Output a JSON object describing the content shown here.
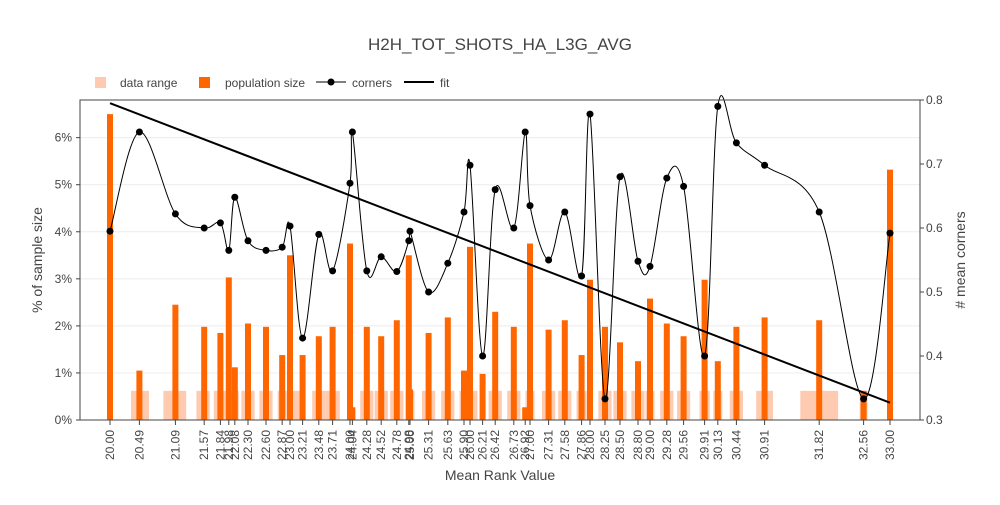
{
  "chart_data": {
    "type": "bar",
    "title": "H2H_TOT_SHOTS_HA_L3G_AVG",
    "xlabel": "Mean Rank Value",
    "ylabel": "% of sample size",
    "y2label": "# mean corners",
    "xlim": [
      19.5,
      33.5
    ],
    "ylim": [
      0,
      6.8
    ],
    "y2lim": [
      0.3,
      0.8
    ],
    "grid": true,
    "legend_placement": "top-left",
    "y_ticks": [
      {
        "value": 0,
        "label": "0%"
      },
      {
        "value": 1,
        "label": "1%"
      },
      {
        "value": 2,
        "label": "2%"
      },
      {
        "value": 3,
        "label": "3%"
      },
      {
        "value": 4,
        "label": "4%"
      },
      {
        "value": 5,
        "label": "5%"
      },
      {
        "value": 6,
        "label": "6%"
      }
    ],
    "y2_ticks": [
      {
        "value": 0.3,
        "label": "0.3"
      },
      {
        "value": 0.4,
        "label": "0.4"
      },
      {
        "value": 0.5,
        "label": "0.5"
      },
      {
        "value": 0.6,
        "label": "0.6"
      },
      {
        "value": 0.7,
        "label": "0.7"
      },
      {
        "value": 0.8,
        "label": "0.8"
      }
    ],
    "x_ticks": [
      {
        "value": 20.0,
        "label": "20.00"
      },
      {
        "value": 20.49,
        "label": "20.49"
      },
      {
        "value": 21.09,
        "label": "21.09"
      },
      {
        "value": 21.57,
        "label": "21.57"
      },
      {
        "value": 21.84,
        "label": "21.84"
      },
      {
        "value": 21.98,
        "label": "21.98"
      },
      {
        "value": 22.08,
        "label": "22.08"
      },
      {
        "value": 22.3,
        "label": "22.30"
      },
      {
        "value": 22.6,
        "label": "22.60"
      },
      {
        "value": 22.87,
        "label": "22.87"
      },
      {
        "value": 23.0,
        "label": "23.00"
      },
      {
        "value": 23.21,
        "label": "23.21"
      },
      {
        "value": 23.48,
        "label": "23.48"
      },
      {
        "value": 23.71,
        "label": "23.71"
      },
      {
        "value": 24.0,
        "label": "24.00"
      },
      {
        "value": 24.04,
        "label": "24.04"
      },
      {
        "value": 24.28,
        "label": "24.28"
      },
      {
        "value": 24.52,
        "label": "24.52"
      },
      {
        "value": 24.78,
        "label": "24.78"
      },
      {
        "value": 24.98,
        "label": "24.98"
      },
      {
        "value": 25.0,
        "label": "25.00"
      },
      {
        "value": 25.31,
        "label": "25.31"
      },
      {
        "value": 25.63,
        "label": "25.63"
      },
      {
        "value": 25.9,
        "label": "25.90"
      },
      {
        "value": 26.0,
        "label": "26.00"
      },
      {
        "value": 26.21,
        "label": "26.21"
      },
      {
        "value": 26.42,
        "label": "26.42"
      },
      {
        "value": 26.73,
        "label": "26.73"
      },
      {
        "value": 26.92,
        "label": "26.92"
      },
      {
        "value": 27.0,
        "label": "27.00"
      },
      {
        "value": 27.31,
        "label": "27.31"
      },
      {
        "value": 27.58,
        "label": "27.58"
      },
      {
        "value": 27.86,
        "label": "27.86"
      },
      {
        "value": 28.0,
        "label": "28.00"
      },
      {
        "value": 28.25,
        "label": "28.25"
      },
      {
        "value": 28.5,
        "label": "28.50"
      },
      {
        "value": 28.8,
        "label": "28.80"
      },
      {
        "value": 29.0,
        "label": "29.00"
      },
      {
        "value": 29.28,
        "label": "29.28"
      },
      {
        "value": 29.56,
        "label": "29.56"
      },
      {
        "value": 29.91,
        "label": "29.91"
      },
      {
        "value": 30.13,
        "label": "30.13"
      },
      {
        "value": 30.44,
        "label": "30.44"
      },
      {
        "value": 30.91,
        "label": "30.91"
      },
      {
        "value": 31.82,
        "label": "31.82"
      },
      {
        "value": 32.56,
        "label": "32.56"
      },
      {
        "value": 33.0,
        "label": "33.00"
      }
    ],
    "series": [
      {
        "name": "data range",
        "type": "bar",
        "color": "#ffcbb0",
        "x": [
          20.5,
          21.08,
          21.55,
          21.84,
          22.08,
          22.3,
          22.6,
          22.87,
          23.1,
          23.48,
          23.71,
          24.28,
          24.52,
          24.78,
          25.0,
          25.31,
          25.63,
          25.9,
          26.05,
          26.42,
          26.73,
          27.0,
          27.31,
          27.58,
          27.86,
          28.25,
          28.5,
          28.8,
          29.0,
          29.28,
          29.56,
          29.91,
          30.13,
          30.44,
          30.91,
          31.82,
          32.56
        ],
        "widths": [
          0.3,
          0.38,
          0.22,
          0.22,
          0.13,
          0.22,
          0.22,
          0.15,
          0.24,
          0.22,
          0.24,
          0.22,
          0.22,
          0.22,
          0.15,
          0.22,
          0.22,
          0.15,
          0.15,
          0.22,
          0.22,
          0.15,
          0.22,
          0.22,
          0.17,
          0.22,
          0.22,
          0.22,
          0.15,
          0.22,
          0.22,
          0.17,
          0.15,
          0.22,
          0.28,
          0.63,
          0.13
        ],
        "values": [
          0.62,
          0.62,
          0.62,
          0.62,
          0.62,
          0.62,
          0.62,
          0.62,
          0.62,
          0.62,
          0.62,
          0.62,
          0.62,
          0.62,
          0.62,
          0.62,
          0.62,
          0.62,
          0.62,
          0.62,
          0.62,
          0.62,
          0.62,
          0.62,
          0.62,
          0.62,
          0.62,
          0.62,
          0.62,
          0.62,
          0.62,
          0.62,
          0.62,
          0.62,
          0.62,
          0.62,
          0.62
        ]
      },
      {
        "name": "population size",
        "type": "bar",
        "color": "#ff6600",
        "x": [
          20.0,
          20.49,
          21.09,
          21.57,
          21.84,
          21.98,
          22.08,
          22.3,
          22.6,
          22.87,
          23.0,
          23.21,
          23.48,
          23.71,
          24.0,
          24.04,
          24.28,
          24.52,
          24.78,
          24.98,
          25.0,
          25.31,
          25.63,
          25.9,
          26.0,
          26.21,
          26.42,
          26.73,
          26.92,
          27.0,
          27.31,
          27.58,
          27.86,
          28.0,
          28.25,
          28.5,
          28.8,
          29.0,
          29.28,
          29.56,
          29.91,
          30.13,
          30.44,
          30.91,
          31.82,
          32.56,
          33.0
        ],
        "values": [
          6.5,
          1.05,
          2.45,
          1.98,
          1.85,
          3.03,
          1.12,
          2.05,
          1.98,
          1.38,
          3.5,
          1.38,
          1.78,
          1.98,
          3.75,
          0.27,
          1.98,
          1.78,
          2.12,
          3.5,
          0.65,
          1.85,
          2.18,
          1.05,
          3.68,
          0.98,
          2.3,
          1.98,
          0.27,
          3.75,
          1.92,
          2.12,
          1.38,
          2.98,
          1.98,
          1.65,
          1.25,
          2.58,
          2.05,
          1.78,
          2.98,
          1.25,
          1.98,
          2.18,
          2.12,
          0.62,
          5.32
        ]
      },
      {
        "name": "corners",
        "type": "line",
        "axis": "y2",
        "color": "#000000",
        "x": [
          20.0,
          20.49,
          21.09,
          21.57,
          21.84,
          21.98,
          22.08,
          22.3,
          22.6,
          22.87,
          23.0,
          23.21,
          23.48,
          23.71,
          24.0,
          24.04,
          24.28,
          24.52,
          24.78,
          24.98,
          25.0,
          25.31,
          25.63,
          25.9,
          26.0,
          26.21,
          26.42,
          26.73,
          26.92,
          27.0,
          27.31,
          27.58,
          27.86,
          28.0,
          28.25,
          28.5,
          28.8,
          29.0,
          29.28,
          29.56,
          29.91,
          30.13,
          30.44,
          30.91,
          31.82,
          32.56,
          33.0
        ],
        "values": [
          0.595,
          0.75,
          0.622,
          0.6,
          0.608,
          0.565,
          0.648,
          0.58,
          0.565,
          0.57,
          0.603,
          0.428,
          0.59,
          0.533,
          0.67,
          0.75,
          0.533,
          0.555,
          0.532,
          0.58,
          0.595,
          0.5,
          0.545,
          0.625,
          0.698,
          0.4,
          0.66,
          0.6,
          0.75,
          0.635,
          0.55,
          0.625,
          0.525,
          0.778,
          0.333,
          0.68,
          0.548,
          0.54,
          0.678,
          0.665,
          0.4,
          0.79,
          0.733,
          0.698,
          0.625,
          0.333,
          0.592
        ]
      },
      {
        "name": "fit",
        "type": "line",
        "axis": "y2",
        "color": "#000000",
        "x": [
          20.0,
          33.0
        ],
        "values": [
          0.795,
          0.327
        ]
      }
    ]
  }
}
